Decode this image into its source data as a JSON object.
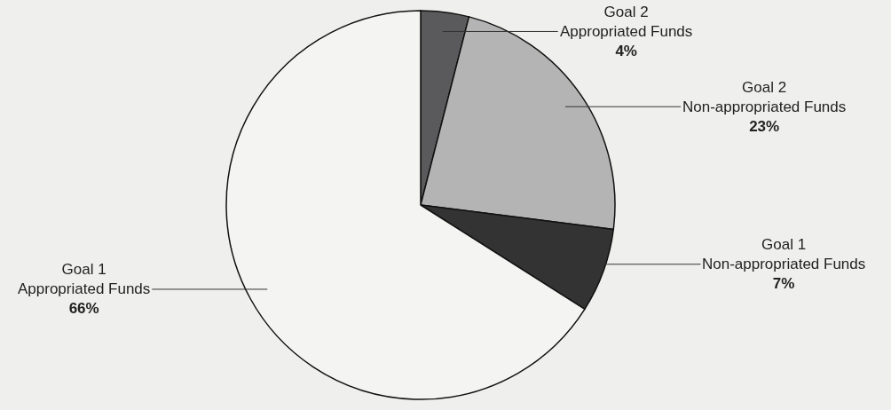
{
  "chart_data": {
    "type": "pie",
    "categories": [
      "Goal 2\nAppropriated Funds",
      "Goal 2\nNon-appropriated Funds",
      "Goal 1\nNon-appropriated Funds",
      "Goal 1\nAppropriated Funds"
    ],
    "values": [
      4,
      23,
      7,
      66
    ],
    "value_labels": [
      "4%",
      "23%",
      "7%",
      "66%"
    ],
    "colors": [
      "#5a5a5c",
      "#b4b4b4",
      "#333333",
      "#f4f4f2"
    ],
    "legend": false
  }
}
